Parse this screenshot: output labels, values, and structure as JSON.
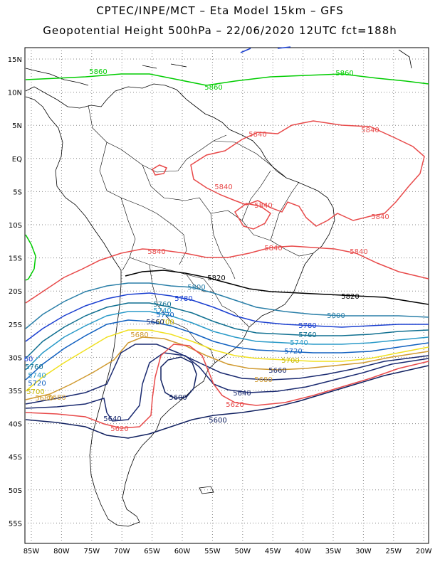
{
  "header": {
    "title_line1": "CPTEC/INPE/MCT –  Eta Model 15km – GFS",
    "title_line2": "Geopotential Height 500hPa – 22/06/2020 12UTC fct=188h"
  },
  "map": {
    "type": "contour_map",
    "variable": "Geopotential Height 500hPa",
    "lon_range": [
      -86,
      -20
    ],
    "lat_range": [
      -58,
      17
    ],
    "grid": true,
    "lon_ticks": [
      "85W",
      "80W",
      "75W",
      "70W",
      "65W",
      "60W",
      "55W",
      "50W",
      "45W",
      "40W",
      "35W",
      "30W",
      "25W",
      "20W"
    ],
    "lat_ticks": [
      "15N",
      "10N",
      "5N",
      "EQ",
      "5S",
      "10S",
      "15S",
      "20S",
      "25S",
      "30S",
      "35S",
      "40S",
      "45S",
      "50S",
      "55S"
    ],
    "contours": [
      {
        "level": "5860",
        "color": "#00cc00"
      },
      {
        "level": "5840",
        "color": "#e84a4a"
      },
      {
        "level": "5820",
        "color": "#000000"
      },
      {
        "level": "5800",
        "color": "#2a7fa8"
      },
      {
        "level": "5780",
        "color": "#1a3fd0"
      },
      {
        "level": "5760",
        "color": "#0f6f90"
      },
      {
        "level": "5740",
        "color": "#2a9ac8"
      },
      {
        "level": "5720",
        "color": "#1060c0"
      },
      {
        "level": "5700",
        "color": "#f0e020"
      },
      {
        "level": "5680",
        "color": "#d09a30"
      },
      {
        "level": "5660",
        "color": "#1a2a70"
      },
      {
        "level": "5640",
        "color": "#1a2a70"
      },
      {
        "level": "5620",
        "color": "#e84a4a"
      },
      {
        "level": "5600",
        "color": "#102060"
      }
    ],
    "labels": [
      {
        "text": "5860",
        "color": "#00cc00"
      },
      {
        "text": "5860",
        "color": "#00cc00"
      },
      {
        "text": "5860",
        "color": "#00cc00"
      },
      {
        "text": "5840",
        "color": "#e84a4a"
      },
      {
        "text": "5840",
        "color": "#e84a4a"
      },
      {
        "text": "5840",
        "color": "#e84a4a"
      },
      {
        "text": "5840",
        "color": "#e84a4a"
      },
      {
        "text": "5840",
        "color": "#e84a4a"
      },
      {
        "text": "5840",
        "color": "#e84a4a"
      },
      {
        "text": "5840",
        "color": "#e84a4a"
      },
      {
        "text": "5840",
        "color": "#e84a4a"
      },
      {
        "text": "5820",
        "color": "#000000"
      },
      {
        "text": "5820",
        "color": "#000000"
      },
      {
        "text": "5800",
        "color": "#2a7fa8"
      },
      {
        "text": "5800",
        "color": "#2a7fa8"
      },
      {
        "text": "5780",
        "color": "#1a3fd0"
      },
      {
        "text": "5780",
        "color": "#1a3fd0"
      },
      {
        "text": "5760",
        "color": "#0f6f90"
      },
      {
        "text": "5760",
        "color": "#0f6f90"
      },
      {
        "text": "5740",
        "color": "#2a9ac8"
      },
      {
        "text": "5740",
        "color": "#2a9ac8"
      },
      {
        "text": "5720",
        "color": "#1060c0"
      },
      {
        "text": "5720",
        "color": "#1060c0"
      },
      {
        "text": "5700",
        "color": "#c8b800"
      },
      {
        "text": "5700",
        "color": "#c8b800"
      },
      {
        "text": "5680",
        "color": "#d09a30"
      },
      {
        "text": "5680",
        "color": "#d09a30"
      },
      {
        "text": "5660",
        "color": "#1a2a70"
      },
      {
        "text": "5660",
        "color": "#1a2a70"
      },
      {
        "text": "5640",
        "color": "#1a2a70"
      },
      {
        "text": "5640",
        "color": "#1a2a70"
      },
      {
        "text": "5620",
        "color": "#e84a4a"
      },
      {
        "text": "5620",
        "color": "#e84a4a"
      },
      {
        "text": "5600",
        "color": "#102060"
      },
      {
        "text": "5600",
        "color": "#102060"
      },
      {
        "text": "5600",
        "color": "#102060"
      },
      {
        "text": "5680",
        "color": "#d09a30"
      },
      {
        "text": "5760",
        "color": "#0f6f90"
      },
      {
        "text": "5740",
        "color": "#2a9ac8"
      },
      {
        "text": "5720",
        "color": "#1060c0"
      },
      {
        "text": "5700",
        "color": "#c8b800"
      },
      {
        "text": "5680",
        "color": "#d09a30"
      },
      {
        "text": "60",
        "color": "#1a3fd0"
      }
    ]
  }
}
